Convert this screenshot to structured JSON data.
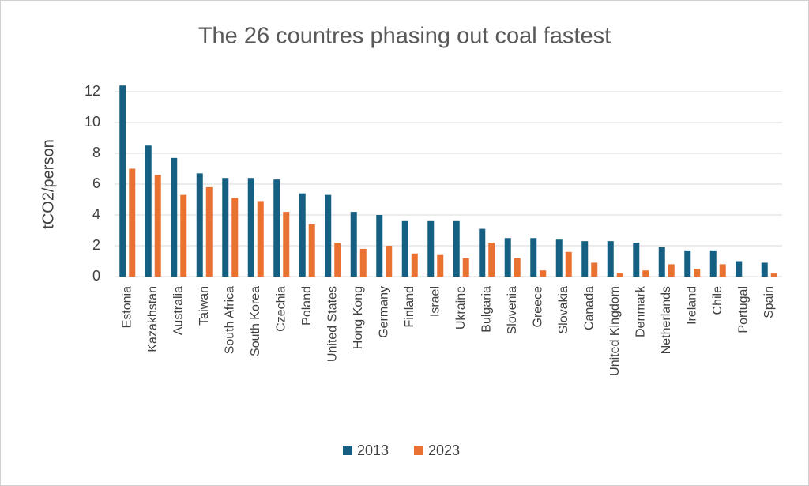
{
  "chart_data": {
    "type": "bar",
    "title": "The 26 countres phasing out coal fastest",
    "y_label": "tCO2/person",
    "categories": [
      "Estonia",
      "Kazakhstan",
      "Australia",
      "Taiwan",
      "South Africa",
      "South Korea",
      "Czechia",
      "Poland",
      "United States",
      "Hong Kong",
      "Germany",
      "Finland",
      "Israel",
      "Ukraine",
      "Bulgaria",
      "Slovenia",
      "Greece",
      "Slovakia",
      "Canada",
      "United Kingdom",
      "Denmark",
      "Netherlands",
      "Ireland",
      "Chile",
      "Portugal",
      "Spain"
    ],
    "series": [
      {
        "name": "2013",
        "color": "#156082",
        "values": [
          12.4,
          8.5,
          7.7,
          6.7,
          6.4,
          6.4,
          6.3,
          5.4,
          5.3,
          4.2,
          4.0,
          3.6,
          3.6,
          3.6,
          3.1,
          2.5,
          2.5,
          2.4,
          2.3,
          2.3,
          2.2,
          1.9,
          1.7,
          1.7,
          1.0,
          0.9
        ]
      },
      {
        "name": "2023",
        "color": "#e97132",
        "values": [
          7.0,
          6.6,
          5.3,
          5.8,
          5.1,
          4.9,
          4.2,
          3.4,
          2.2,
          1.8,
          2.0,
          1.5,
          1.4,
          1.2,
          2.2,
          1.2,
          0.4,
          1.6,
          0.9,
          0.2,
          0.4,
          0.8,
          0.5,
          0.8,
          0,
          0.2
        ]
      }
    ],
    "ylim": [
      0,
      13
    ],
    "yticks": [
      0,
      2,
      4,
      6,
      8,
      10,
      12
    ],
    "grid": true,
    "legend": "bottom"
  }
}
